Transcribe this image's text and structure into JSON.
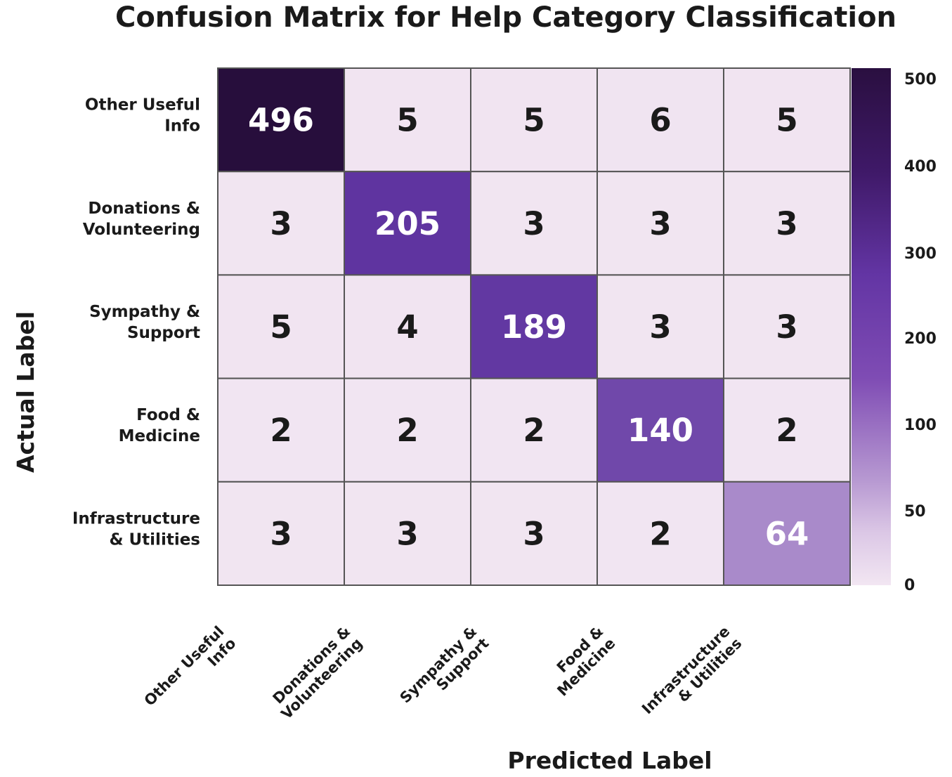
{
  "chart_data": {
    "type": "heatmap",
    "title": "Confusion Matrix for Help Category Classification",
    "xlabel": "Predicted Label",
    "ylabel": "Actual Label",
    "x_categories": [
      [
        "Other Useful",
        "Info"
      ],
      [
        "Donations &",
        "Volunteering"
      ],
      [
        "Sympathy &",
        "Support"
      ],
      [
        "Food &",
        "Medicine"
      ],
      [
        "Infrastructure",
        "& Utilities"
      ]
    ],
    "y_categories": [
      [
        "Other Useful",
        "Info"
      ],
      [
        "Donations &",
        "Volunteering"
      ],
      [
        "Sympathy &",
        "Support"
      ],
      [
        "Food &",
        "Medicine"
      ],
      [
        "Infrastructure",
        "& Utilities"
      ]
    ],
    "matrix": [
      [
        496,
        5,
        5,
        6,
        5
      ],
      [
        3,
        205,
        3,
        3,
        3
      ],
      [
        5,
        4,
        189,
        3,
        3
      ],
      [
        2,
        2,
        2,
        140,
        2
      ],
      [
        3,
        3,
        3,
        2,
        64
      ]
    ],
    "colorbar": {
      "ticks": [
        "500",
        "400",
        "300",
        "200",
        "100",
        "50",
        "0"
      ],
      "range": [
        0,
        510
      ],
      "colormap": "Purples",
      "low_color": "#f2e6f2",
      "high_color": "#2a0f40"
    },
    "grid": true
  }
}
